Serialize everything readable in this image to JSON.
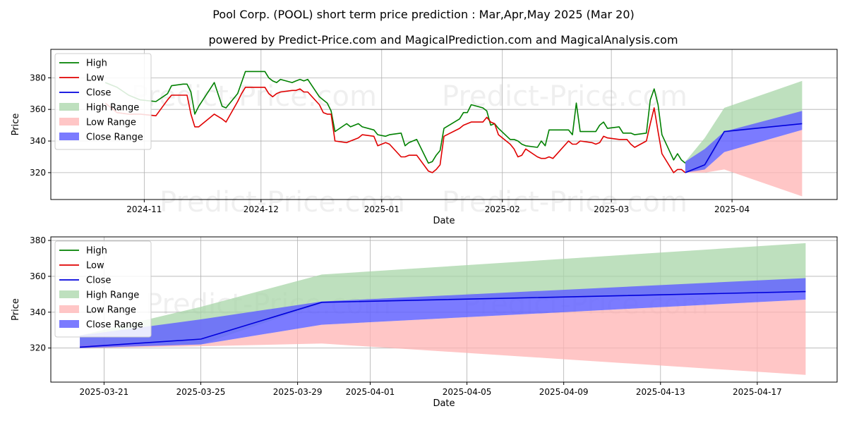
{
  "page": {
    "title": "Pool Corp. (POOL) short term price prediction : Mar,Apr,May 2025 (Mar 20)",
    "subtitle": "powered by Predict-Price.com and MagicalPrediction.com and MagicalAnalysis.com",
    "watermark": "Predict-Price.com"
  },
  "colors": {
    "high": "#008000",
    "low": "#e00000",
    "close": "#0000dd",
    "high_range": "#a8d5a8",
    "low_range": "#ffb3b3",
    "close_range": "#6464ff"
  },
  "chart_data": [
    {
      "type": "line",
      "xlabel": "Date",
      "ylabel": "Price",
      "x_ticks": [
        "2024-11",
        "2024-12",
        "2025-01",
        "2025-02",
        "2025-03",
        "2025-04"
      ],
      "y_ticks": [
        320,
        340,
        360,
        380
      ],
      "ylim": [
        303,
        398
      ],
      "grid": true,
      "legend": "top-left",
      "legend_entries": [
        "High",
        "Low",
        "Close",
        "High Range",
        "Low Range",
        "Close Range"
      ],
      "series": [
        {
          "name": "High",
          "x": [
            "2024-10-22",
            "2024-10-25",
            "2024-10-28",
            "2024-10-31",
            "2024-11-04",
            "2024-11-07",
            "2024-11-08",
            "2024-11-11",
            "2024-11-12",
            "2024-11-13",
            "2024-11-14",
            "2024-11-15",
            "2024-11-19",
            "2024-11-21",
            "2024-11-22",
            "2024-11-25",
            "2024-11-26",
            "2024-11-27",
            "2024-12-02",
            "2024-12-03",
            "2024-12-04",
            "2024-12-05",
            "2024-12-06",
            "2024-12-09",
            "2024-12-10",
            "2024-12-11",
            "2024-12-12",
            "2024-12-13",
            "2024-12-16",
            "2024-12-17",
            "2024-12-18",
            "2024-12-19",
            "2024-12-20",
            "2024-12-23",
            "2024-12-24",
            "2024-12-26",
            "2024-12-27",
            "2024-12-30",
            "2024-12-31",
            "2025-01-02",
            "2025-01-03",
            "2025-01-06",
            "2025-01-07",
            "2025-01-08",
            "2025-01-10",
            "2025-01-13",
            "2025-01-14",
            "2025-01-15",
            "2025-01-16",
            "2025-01-17",
            "2025-01-21",
            "2025-01-22",
            "2025-01-23",
            "2025-01-24",
            "2025-01-27",
            "2025-01-28",
            "2025-01-29",
            "2025-01-30",
            "2025-01-31",
            "2025-02-03",
            "2025-02-04",
            "2025-02-05",
            "2025-02-06",
            "2025-02-07",
            "2025-02-10",
            "2025-02-11",
            "2025-02-12",
            "2025-02-13",
            "2025-02-14",
            "2025-02-18",
            "2025-02-19",
            "2025-02-20",
            "2025-02-21",
            "2025-02-24",
            "2025-02-25",
            "2025-02-26",
            "2025-02-27",
            "2025-02-28",
            "2025-03-03",
            "2025-03-04",
            "2025-03-05",
            "2025-03-06",
            "2025-03-07",
            "2025-03-10",
            "2025-03-11",
            "2025-03-12",
            "2025-03-13",
            "2025-03-14",
            "2025-03-17",
            "2025-03-18",
            "2025-03-19",
            "2025-03-20"
          ],
          "values": [
            377,
            374,
            369,
            366,
            365,
            370,
            375,
            376,
            376,
            371,
            357,
            362,
            377,
            362,
            361,
            370,
            377,
            384,
            384,
            380,
            378,
            377,
            379,
            377,
            378,
            379,
            378,
            379,
            368,
            366,
            364,
            359,
            346,
            351,
            349,
            351,
            349,
            347,
            344,
            343,
            344,
            345,
            337,
            339,
            341,
            326,
            327,
            331,
            334,
            348,
            354,
            358,
            358,
            363,
            361,
            359,
            350,
            351,
            348,
            341,
            341,
            340,
            338,
            337,
            336,
            340,
            337,
            347,
            347,
            347,
            344,
            364,
            346,
            346,
            346,
            350,
            352,
            348,
            349,
            345,
            345,
            345,
            344,
            345,
            366,
            373,
            363,
            344,
            328,
            332,
            328,
            326
          ]
        },
        {
          "name": "Low",
          "x": [
            "2024-10-22",
            "2024-10-25",
            "2024-10-28",
            "2024-10-31",
            "2024-11-04",
            "2024-11-07",
            "2024-11-08",
            "2024-11-11",
            "2024-11-12",
            "2024-11-13",
            "2024-11-14",
            "2024-11-15",
            "2024-11-19",
            "2024-11-21",
            "2024-11-22",
            "2024-11-25",
            "2024-11-26",
            "2024-11-27",
            "2024-12-02",
            "2024-12-03",
            "2024-12-04",
            "2024-12-05",
            "2024-12-06",
            "2024-12-09",
            "2024-12-10",
            "2024-12-11",
            "2024-12-12",
            "2024-12-13",
            "2024-12-16",
            "2024-12-17",
            "2024-12-18",
            "2024-12-19",
            "2024-12-20",
            "2024-12-23",
            "2024-12-24",
            "2024-12-26",
            "2024-12-27",
            "2024-12-30",
            "2024-12-31",
            "2025-01-02",
            "2025-01-03",
            "2025-01-06",
            "2025-01-07",
            "2025-01-08",
            "2025-01-10",
            "2025-01-13",
            "2025-01-14",
            "2025-01-15",
            "2025-01-16",
            "2025-01-17",
            "2025-01-21",
            "2025-01-22",
            "2025-01-23",
            "2025-01-24",
            "2025-01-27",
            "2025-01-28",
            "2025-01-29",
            "2025-01-30",
            "2025-01-31",
            "2025-02-03",
            "2025-02-04",
            "2025-02-05",
            "2025-02-06",
            "2025-02-07",
            "2025-02-10",
            "2025-02-11",
            "2025-02-12",
            "2025-02-13",
            "2025-02-14",
            "2025-02-18",
            "2025-02-19",
            "2025-02-20",
            "2025-02-21",
            "2025-02-24",
            "2025-02-25",
            "2025-02-26",
            "2025-02-27",
            "2025-02-28",
            "2025-03-03",
            "2025-03-04",
            "2025-03-05",
            "2025-03-06",
            "2025-03-07",
            "2025-03-10",
            "2025-03-11",
            "2025-03-12",
            "2025-03-13",
            "2025-03-14",
            "2025-03-17",
            "2025-03-18",
            "2025-03-19",
            "2025-03-20"
          ],
          "values": [
            364,
            358,
            357,
            357,
            356,
            366,
            369,
            369,
            369,
            357,
            349,
            349,
            357,
            354,
            352,
            365,
            370,
            374,
            374,
            370,
            368,
            370,
            371,
            372,
            372,
            373,
            371,
            371,
            363,
            358,
            357,
            357,
            340,
            339,
            340,
            342,
            344,
            343,
            337,
            339,
            338,
            330,
            330,
            331,
            331,
            321,
            320,
            322,
            325,
            343,
            348,
            350,
            351,
            352,
            352,
            355,
            352,
            351,
            344,
            338,
            335,
            330,
            331,
            335,
            330,
            329,
            329,
            330,
            329,
            340,
            338,
            338,
            340,
            339,
            338,
            339,
            343,
            342,
            341,
            341,
            341,
            338,
            336,
            340,
            351,
            361,
            346,
            332,
            320,
            322,
            322,
            320
          ]
        },
        {
          "name": "Close",
          "x": [
            "2025-03-20",
            "2025-03-25",
            "2025-03-30",
            "2025-04-19"
          ],
          "values": [
            320,
            325,
            346,
            351
          ]
        }
      ],
      "ranges": [
        {
          "name": "High Range",
          "x": [
            "2025-03-20",
            "2025-03-25",
            "2025-03-30",
            "2025-04-19"
          ],
          "upper": [
            327,
            342,
            361,
            378
          ],
          "lower": [
            320,
            322,
            345,
            351
          ]
        },
        {
          "name": "Low Range",
          "x": [
            "2025-03-20",
            "2025-03-25",
            "2025-03-30",
            "2025-04-19"
          ],
          "upper": [
            322,
            322,
            333,
            347
          ],
          "lower": [
            320,
            320,
            322,
            305
          ]
        },
        {
          "name": "Close Range",
          "x": [
            "2025-03-20",
            "2025-03-25",
            "2025-03-30",
            "2025-04-19"
          ],
          "upper": [
            327,
            335,
            346,
            359
          ],
          "lower": [
            320,
            322,
            333,
            347
          ]
        }
      ]
    },
    {
      "type": "line",
      "xlabel": "Date",
      "ylabel": "Price",
      "x_ticks": [
        "2025-03-21",
        "2025-03-25",
        "2025-03-29",
        "2025-04-01",
        "2025-04-05",
        "2025-04-09",
        "2025-04-13",
        "2025-04-17"
      ],
      "y_ticks": [
        320,
        340,
        360,
        380
      ],
      "ylim": [
        301,
        382
      ],
      "grid": true,
      "legend": "top-left",
      "legend_entries": [
        "High",
        "Low",
        "Close",
        "High Range",
        "Low Range",
        "Close Range"
      ],
      "series": [
        {
          "name": "Close",
          "x": [
            "2025-03-20",
            "2025-03-25",
            "2025-03-30",
            "2025-04-19"
          ],
          "values": [
            320.5,
            325,
            345.5,
            351.5
          ]
        }
      ],
      "ranges": [
        {
          "name": "High Range",
          "x": [
            "2025-03-20",
            "2025-03-25",
            "2025-03-30",
            "2025-04-19"
          ],
          "upper": [
            327,
            343,
            361,
            378.5
          ],
          "lower": [
            320,
            322,
            345,
            351
          ]
        },
        {
          "name": "Low Range",
          "x": [
            "2025-03-20",
            "2025-03-25",
            "2025-03-30",
            "2025-04-19"
          ],
          "upper": [
            322,
            322,
            333,
            347
          ],
          "lower": [
            320,
            321,
            322.5,
            305
          ]
        },
        {
          "name": "Close Range",
          "x": [
            "2025-03-20",
            "2025-03-25",
            "2025-03-30",
            "2025-04-19"
          ],
          "upper": [
            327,
            336,
            346,
            359
          ],
          "lower": [
            320,
            322,
            333,
            347
          ]
        }
      ]
    }
  ]
}
